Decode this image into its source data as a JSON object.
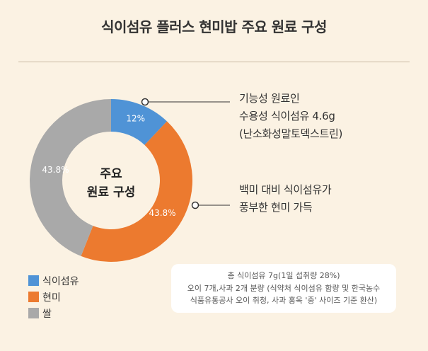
{
  "title": "식이섬유 플러스 현미밥 주요 원료 구성",
  "chart_data": {
    "type": "pie",
    "variant": "donut",
    "center_label": [
      "주요",
      "원료 구성"
    ],
    "slices": [
      {
        "name": "식이섬유",
        "value": 12,
        "label": "12%",
        "color": "#4f93d6"
      },
      {
        "name": "현미",
        "value": 43.8,
        "label": "43.8%",
        "color": "#ec7a2f"
      },
      {
        "name": "쌀",
        "value": 43.8,
        "label": "43.8%",
        "color": "#a9a9a9"
      }
    ],
    "legend_position": "bottom-left"
  },
  "annotations": {
    "fiber": [
      "기능성 원료인",
      "수용성 식이섬유 4.6g",
      "(난소화성말토덱스트린)"
    ],
    "brown_rice": [
      "백미 대비 식이섬유가",
      "풍부한 현미 가득"
    ]
  },
  "legend": [
    {
      "label": "식이섬유",
      "color": "#4f93d6"
    },
    {
      "label": "현미",
      "color": "#ec7a2f"
    },
    {
      "label": "쌀",
      "color": "#a9a9a9"
    }
  ],
  "source_note": [
    "총 식이섬유 7g(1일 섭취량 28%)",
    "오이 7개,사과 2개 분량 (식약처 식이섬유 함량 및 한국농수",
    "식품유통공사 오이 취청, 사과 홍옥 '중' 사이즈 기준 환산)"
  ],
  "colors": {
    "background": "#fbf2e3",
    "fiber": "#4f93d6",
    "brown_rice": "#ec7a2f",
    "rice": "#a9a9a9"
  }
}
